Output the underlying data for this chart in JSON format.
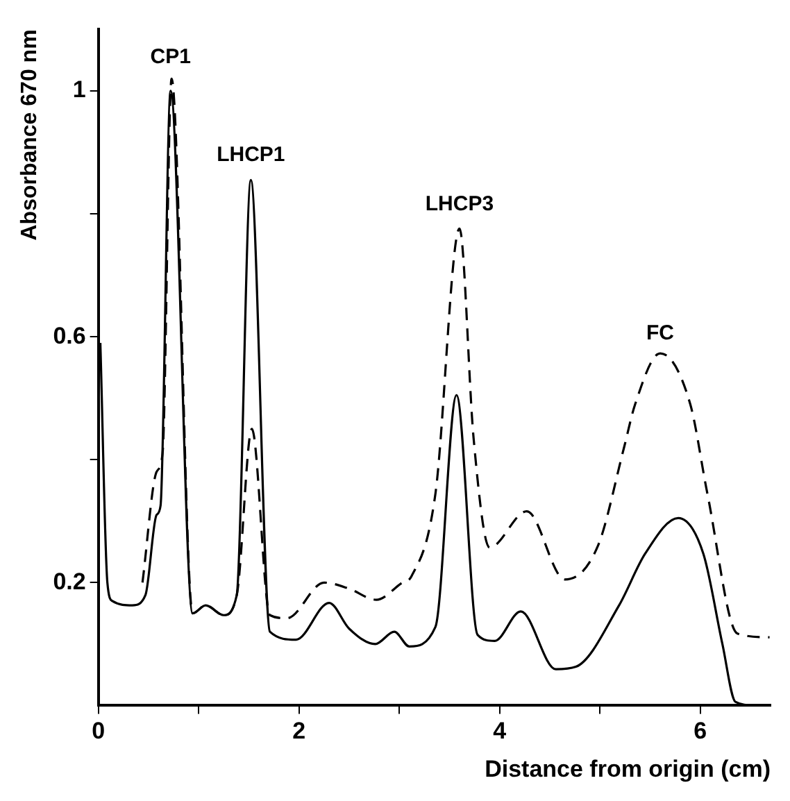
{
  "chart_data": {
    "type": "line",
    "xlabel": "Distance from origin (cm)",
    "ylabel": "Absorbance 670 nm",
    "xlim": [
      0,
      6.7
    ],
    "xticks": [
      0,
      {
        "value": 1,
        "label": null
      },
      2,
      {
        "value": 3,
        "label": null
      },
      4,
      {
        "value": 5,
        "label": null
      },
      6
    ],
    "ylim": [
      0,
      1.1
    ],
    "yticks": [
      {
        "value": 0.2,
        "label": "0.2"
      },
      {
        "value": 0.4,
        "label": null
      },
      {
        "value": 0.6,
        "label": "0.6"
      },
      {
        "value": 0.8,
        "label": null
      },
      {
        "value": 1,
        "label": "1"
      }
    ],
    "grid": false,
    "legend": false,
    "marker": "none",
    "annotations": [
      {
        "text": "CP1",
        "x": 0.72,
        "y": 1.02
      },
      {
        "text": "LHCP1",
        "x": 1.52,
        "y": 0.86
      },
      {
        "text": "LHCP3",
        "x": 3.6,
        "y": 0.78
      },
      {
        "text": "FC",
        "x": 5.6,
        "y": 0.57
      }
    ],
    "series": [
      {
        "color": "#000000",
        "line_style": "solid",
        "x": [
          0.02,
          0.09,
          0.14,
          0.34,
          0.47,
          0.58,
          0.62,
          0.72,
          0.94,
          1.07,
          1.25,
          1.38,
          1.52,
          1.71,
          1.97,
          2.3,
          2.5,
          2.76,
          2.95,
          3.1,
          3.36,
          3.57,
          3.78,
          3.95,
          4.21,
          4.56,
          4.76,
          5.19,
          5.45,
          5.78,
          6.03,
          6.22,
          6.35,
          6.55
        ],
        "values": [
          0.59,
          0.2,
          0.17,
          0.163,
          0.18,
          0.31,
          0.325,
          1.0,
          0.15,
          0.163,
          0.147,
          0.18,
          0.855,
          0.12,
          0.107,
          0.167,
          0.125,
          0.1,
          0.12,
          0.096,
          0.128,
          0.505,
          0.115,
          0.105,
          0.153,
          0.059,
          0.063,
          0.163,
          0.247,
          0.305,
          0.247,
          0.1,
          0.006,
          0.0
        ]
      },
      {
        "color": "#000000",
        "line_style": "dashed",
        "x": [
          0.44,
          0.58,
          0.64,
          0.73,
          0.94,
          1.07,
          1.25,
          1.38,
          1.53,
          1.71,
          1.88,
          2.25,
          2.5,
          2.77,
          3.03,
          3.12,
          3.36,
          3.6,
          3.74,
          3.9,
          4.27,
          4.65,
          4.98,
          5.24,
          5.35,
          5.6,
          5.9,
          6.07,
          6.37,
          6.69
        ],
        "values": [
          0.2,
          0.38,
          0.41,
          1.02,
          0.15,
          0.163,
          0.147,
          0.18,
          0.45,
          0.147,
          0.142,
          0.2,
          0.19,
          0.172,
          0.2,
          0.21,
          0.345,
          0.776,
          0.435,
          0.257,
          0.316,
          0.205,
          0.26,
          0.42,
          0.49,
          0.573,
          0.49,
          0.345,
          0.117,
          0.111
        ]
      }
    ]
  }
}
